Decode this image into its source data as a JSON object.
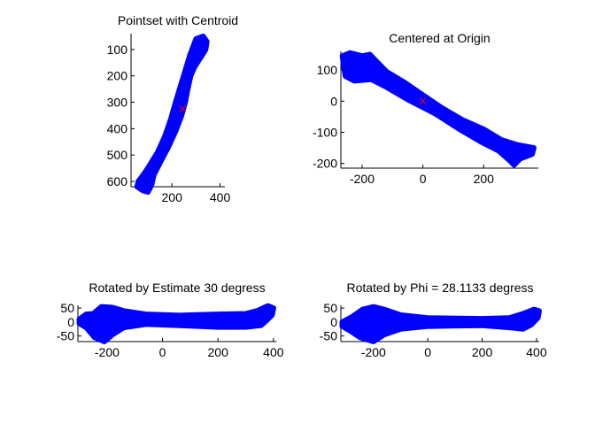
{
  "chart_data": [
    {
      "type": "scatter",
      "title": "Pointset with Centroid",
      "xlabel": "",
      "ylabel": "",
      "x_ticks": [
        200,
        400
      ],
      "y_ticks": [
        100,
        200,
        300,
        400,
        500,
        600
      ],
      "y_reversed": true,
      "xlim": [
        30,
        420
      ],
      "ylim": [
        40,
        620
      ],
      "grid": false,
      "series": [
        {
          "kind": "bone",
          "color": "#0000ff",
          "outline": [
            [
              300,
              60
            ],
            [
              330,
              50
            ],
            [
              345,
              70
            ],
            [
              340,
              100
            ],
            [
              320,
              130
            ],
            [
              295,
              165
            ],
            [
              278,
              200
            ],
            [
              266,
              250
            ],
            [
              255,
              300
            ],
            [
              240,
              350
            ],
            [
              215,
              410
            ],
            [
              185,
              470
            ],
            [
              150,
              530
            ],
            [
              125,
              575
            ],
            [
              115,
              615
            ],
            [
              100,
              640
            ],
            [
              80,
              635
            ],
            [
              55,
              620
            ],
            [
              60,
              600
            ],
            [
              85,
              570
            ],
            [
              110,
              535
            ],
            [
              140,
              490
            ],
            [
              170,
              430
            ],
            [
              195,
              365
            ],
            [
              215,
              300
            ],
            [
              235,
              240
            ],
            [
              255,
              180
            ],
            [
              275,
              120
            ]
          ]
        },
        {
          "kind": "centroid",
          "color": "#ff0000",
          "x": 245,
          "y": 325
        }
      ]
    },
    {
      "type": "scatter",
      "title": "Centered at Origin",
      "xlabel": "",
      "ylabel": "",
      "x_ticks": [
        -200,
        0,
        200
      ],
      "y_ticks": [
        100,
        0,
        -100,
        -200
      ],
      "y_reversed": false,
      "xlim": [
        -270,
        380
      ],
      "ylim": [
        -215,
        160
      ],
      "grid": false,
      "series": [
        {
          "kind": "bone",
          "color": "#0000ff",
          "outline": [
            [
              -265,
              145
            ],
            [
              -240,
              155
            ],
            [
              -200,
              145
            ],
            [
              -175,
              150
            ],
            [
              -150,
              125
            ],
            [
              -120,
              95
            ],
            [
              -60,
              60
            ],
            [
              0,
              20
            ],
            [
              60,
              -20
            ],
            [
              130,
              -60
            ],
            [
              200,
              -90
            ],
            [
              260,
              -125
            ],
            [
              310,
              -140
            ],
            [
              365,
              -150
            ],
            [
              360,
              -170
            ],
            [
              320,
              -185
            ],
            [
              300,
              -205
            ],
            [
              285,
              -190
            ],
            [
              250,
              -160
            ],
            [
              190,
              -130
            ],
            [
              120,
              -90
            ],
            [
              40,
              -40
            ],
            [
              -50,
              5
            ],
            [
              -120,
              45
            ],
            [
              -170,
              70
            ],
            [
              -225,
              65
            ],
            [
              -255,
              80
            ],
            [
              -260,
              110
            ]
          ]
        },
        {
          "kind": "centroid",
          "color": "#ff0000",
          "x": 0,
          "y": 0
        }
      ]
    },
    {
      "type": "scatter",
      "title": "Rotated by Estimate 30 degress",
      "xlabel": "",
      "ylabel": "",
      "x_ticks": [
        -200,
        0,
        200,
        400
      ],
      "y_ticks": [
        50,
        0,
        -50
      ],
      "y_reversed": false,
      "xlim": [
        -305,
        410
      ],
      "ylim": [
        -70,
        60
      ],
      "grid": false,
      "series": [
        {
          "kind": "bone",
          "color": "#0000ff",
          "outline": [
            [
              -300,
              10
            ],
            [
              -275,
              28
            ],
            [
              -250,
              30
            ],
            [
              -220,
              55
            ],
            [
              -180,
              52
            ],
            [
              -140,
              40
            ],
            [
              -60,
              28
            ],
            [
              60,
              24
            ],
            [
              200,
              28
            ],
            [
              300,
              30
            ],
            [
              340,
              40
            ],
            [
              380,
              58
            ],
            [
              400,
              50
            ],
            [
              395,
              25
            ],
            [
              375,
              5
            ],
            [
              355,
              -12
            ],
            [
              300,
              -18
            ],
            [
              200,
              -18
            ],
            [
              60,
              -12
            ],
            [
              -60,
              -8
            ],
            [
              -140,
              -20
            ],
            [
              -180,
              -45
            ],
            [
              -210,
              -70
            ],
            [
              -245,
              -55
            ],
            [
              -275,
              -20
            ],
            [
              -300,
              -5
            ]
          ]
        }
      ]
    },
    {
      "type": "scatter",
      "title": "Rotated by Phi = 28.1133 degress",
      "xlabel": "",
      "ylabel": "",
      "x_ticks": [
        -200,
        0,
        200,
        400
      ],
      "y_ticks": [
        50,
        0,
        -50
      ],
      "y_reversed": false,
      "xlim": [
        -320,
        410
      ],
      "ylim": [
        -70,
        60
      ],
      "grid": false,
      "series": [
        {
          "kind": "bone",
          "color": "#0000ff",
          "outline": [
            [
              -315,
              0
            ],
            [
              -280,
              18
            ],
            [
              -240,
              45
            ],
            [
              -200,
              55
            ],
            [
              -160,
              45
            ],
            [
              -100,
              25
            ],
            [
              0,
              15
            ],
            [
              200,
              12
            ],
            [
              300,
              15
            ],
            [
              350,
              30
            ],
            [
              390,
              45
            ],
            [
              410,
              40
            ],
            [
              405,
              15
            ],
            [
              380,
              -10
            ],
            [
              350,
              -25
            ],
            [
              300,
              -20
            ],
            [
              200,
              -12
            ],
            [
              0,
              -15
            ],
            [
              -100,
              -25
            ],
            [
              -160,
              -45
            ],
            [
              -200,
              -70
            ],
            [
              -250,
              -55
            ],
            [
              -280,
              -35
            ],
            [
              -315,
              -15
            ]
          ]
        }
      ]
    }
  ]
}
